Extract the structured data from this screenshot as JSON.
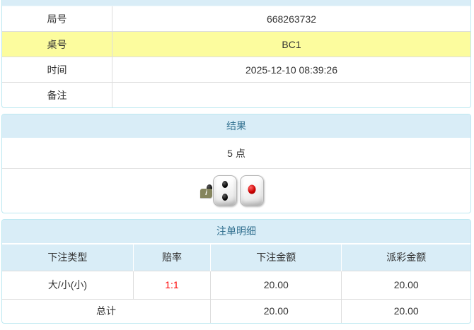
{
  "game_info": {
    "rows": [
      {
        "label": "局号",
        "value": "668263732",
        "highlight": false
      },
      {
        "label": "桌号",
        "value": "BC1",
        "highlight": true
      },
      {
        "label": "时间",
        "value": "2025-12-10 08:39:26",
        "highlight": false
      },
      {
        "label": "备注",
        "value": "",
        "highlight": false
      }
    ]
  },
  "result": {
    "title": "结果",
    "points": "5 点",
    "dice": [
      2,
      2,
      1
    ],
    "info_badge": "i"
  },
  "bet_details": {
    "title": "注单明细",
    "columns": [
      "下注类型",
      "赔率",
      "下注金额",
      "派彩金额"
    ],
    "rows": [
      {
        "bet_type": "大/小(小)",
        "odds": "1:1",
        "bet_amount": "20.00",
        "payout_amount": "20.00"
      }
    ],
    "total_row": {
      "label": "总计",
      "bet_amount": "20.00",
      "payout_amount": "20.00"
    }
  },
  "colors": {
    "panel_border": "#bce8f1",
    "panel_header_bg": "#d9edf7",
    "panel_header_text": "#31708f",
    "highlight_row_bg": "#fcfc9e",
    "odds_text": "#ff0000",
    "dice_red_pip": "#cc0000"
  }
}
